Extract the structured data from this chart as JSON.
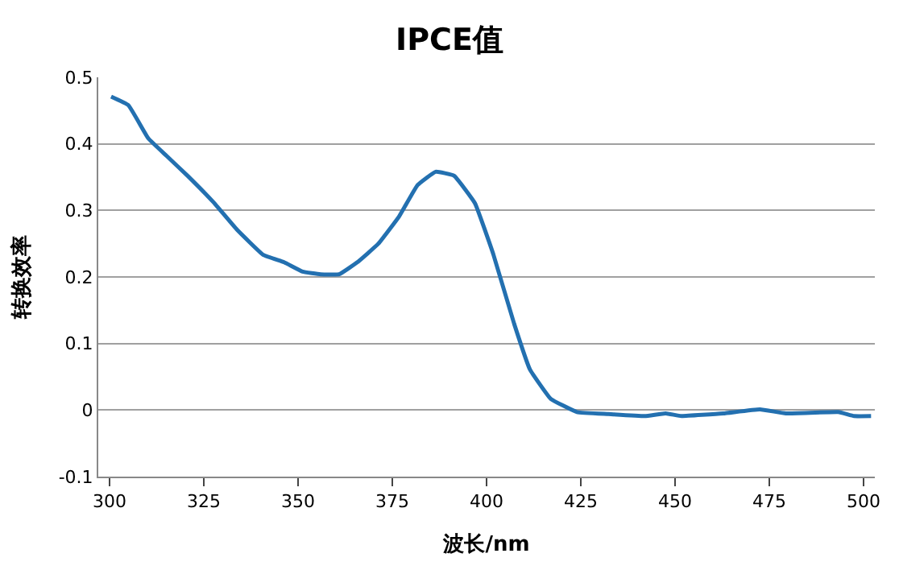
{
  "chart_data": {
    "type": "line",
    "title": "IPCE值",
    "xlabel": "波长/nm",
    "ylabel": "转换效率",
    "x": [
      300.4,
      305,
      310.3,
      315.1,
      320.7,
      327.6,
      333.8,
      340.8,
      346.3,
      351.2,
      356,
      360.9,
      365.7,
      371.3,
      376.8,
      381.7,
      386.5,
      391.4,
      396.9,
      401.8,
      407.3,
      411.5,
      417,
      424,
      432.3,
      442,
      447.5,
      451.7,
      462.8,
      472.5,
      479.4,
      493.3,
      497.5,
      502
    ],
    "series": [
      {
        "color": "#2370b0",
        "values": [
          0.471,
          0.458,
          0.408,
          0.382,
          0.352,
          0.312,
          0.271,
          0.233,
          0.222,
          0.208,
          0.204,
          0.204,
          0.222,
          0.25,
          0.291,
          0.338,
          0.358,
          0.352,
          0.311,
          0.234,
          0.13,
          0.061,
          0.017,
          -0.003,
          -0.006,
          -0.009,
          -0.005,
          -0.009,
          -0.005,
          0.001,
          -0.005,
          -0.003,
          -0.009,
          -0.009
        ]
      }
    ],
    "xlim": [
      297,
      503
    ],
    "xticks": [
      300,
      325,
      350,
      375,
      400,
      425,
      450,
      475,
      500
    ],
    "ylim": [
      -0.1,
      0.5
    ],
    "yticks": [
      -0.1,
      0,
      0.1,
      0.2,
      0.3,
      0.4,
      0.5
    ],
    "grid": "y",
    "legend": false,
    "marker": "none",
    "line_style": "solid"
  }
}
